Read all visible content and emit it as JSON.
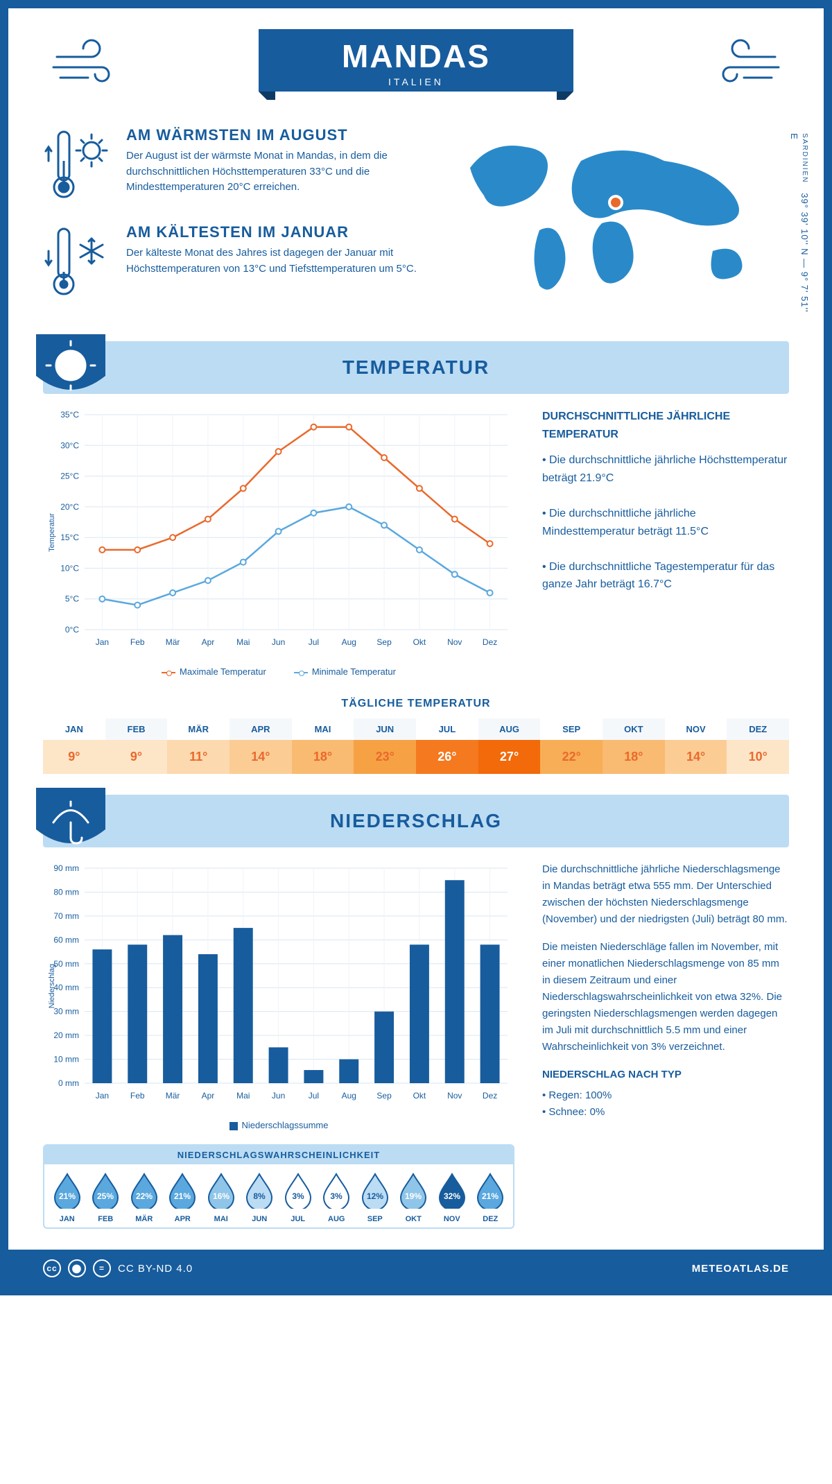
{
  "colors": {
    "primary": "#175c9d",
    "light": "#bcdcf4",
    "accent": "#e9692c",
    "line_max": "#e9692c",
    "line_min": "#5aa8de"
  },
  "header": {
    "title": "MANDAS",
    "subtitle": "ITALIEN"
  },
  "coords": {
    "region": "SARDINIEN",
    "text": "39° 39' 10'' N — 9° 7' 51'' E"
  },
  "facts": {
    "warm": {
      "title": "AM WÄRMSTEN IM AUGUST",
      "text": "Der August ist der wärmste Monat in Mandas, in dem die durchschnittlichen Höchsttemperaturen 33°C und die Mindesttemperaturen 20°C erreichen."
    },
    "cold": {
      "title": "AM KÄLTESTEN IM JANUAR",
      "text": "Der kälteste Monat des Jahres ist dagegen der Januar mit Höchsttemperaturen von 13°C und Tiefsttemperaturen um 5°C."
    }
  },
  "sections": {
    "temp": "TEMPERATUR",
    "precip": "NIEDERSCHLAG"
  },
  "months": [
    "Jan",
    "Feb",
    "Mär",
    "Apr",
    "Mai",
    "Jun",
    "Jul",
    "Aug",
    "Sep",
    "Okt",
    "Nov",
    "Dez"
  ],
  "months_upper": [
    "JAN",
    "FEB",
    "MÄR",
    "APR",
    "MAI",
    "JUN",
    "JUL",
    "AUG",
    "SEP",
    "OKT",
    "NOV",
    "DEZ"
  ],
  "temp_chart": {
    "ylabel": "Temperatur",
    "ymin": 0,
    "ymax": 35,
    "ystep": 5,
    "max": [
      13,
      13,
      15,
      18,
      23,
      29,
      33,
      33,
      28,
      23,
      18,
      14
    ],
    "min": [
      5,
      4,
      6,
      8,
      11,
      16,
      19,
      20,
      17,
      13,
      9,
      6
    ],
    "legend_max": "Maximale Temperatur",
    "legend_min": "Minimale Temperatur"
  },
  "temp_info": {
    "title": "DURCHSCHNITTLICHE JÄHRLICHE TEMPERATUR",
    "b1": "• Die durchschnittliche jährliche Höchsttemperatur beträgt 21.9°C",
    "b2": "• Die durchschnittliche jährliche Mindesttemperatur beträgt 11.5°C",
    "b3": "• Die durchschnittliche Tagestemperatur für das ganze Jahr beträgt 16.7°C"
  },
  "daily": {
    "title": "TÄGLICHE TEMPERATUR",
    "temps": [
      "9°",
      "9°",
      "11°",
      "14°",
      "18°",
      "23°",
      "26°",
      "27°",
      "22°",
      "18°",
      "14°",
      "10°"
    ],
    "bg": [
      "#fde5c8",
      "#fde5c8",
      "#fcd9ae",
      "#fbcd95",
      "#f9ba71",
      "#f6a244",
      "#f4791f",
      "#f26a0a",
      "#f7ae57",
      "#f9ba71",
      "#fbcd95",
      "#fde5c8"
    ],
    "fg": [
      "#e9692c",
      "#e9692c",
      "#e9692c",
      "#e9692c",
      "#e9692c",
      "#e9692c",
      "#ffffff",
      "#ffffff",
      "#e9692c",
      "#e9692c",
      "#e9692c",
      "#e9692c"
    ]
  },
  "precip_chart": {
    "ylabel": "Niederschlag",
    "ymax": 90,
    "ystep": 10,
    "values": [
      56,
      58,
      62,
      54,
      65,
      15,
      5.5,
      10,
      30,
      58,
      85,
      58
    ],
    "legend": "Niederschlagssumme"
  },
  "precip_text": {
    "p1": "Die durchschnittliche jährliche Niederschlagsmenge in Mandas beträgt etwa 555 mm. Der Unterschied zwischen der höchsten Niederschlagsmenge (November) und der niedrigsten (Juli) beträgt 80 mm.",
    "p2": "Die meisten Niederschläge fallen im November, mit einer monatlichen Niederschlagsmenge von 85 mm in diesem Zeitraum und einer Niederschlagswahrscheinlichkeit von etwa 32%. Die geringsten Niederschlagsmengen werden dagegen im Juli mit durchschnittlich 5.5 mm und einer Wahrscheinlichkeit von 3% verzeichnet.",
    "type_title": "NIEDERSCHLAG NACH TYP",
    "type1": "• Regen: 100%",
    "type2": "• Schnee: 0%"
  },
  "prob": {
    "title": "NIEDERSCHLAGSWAHRSCHEINLICHKEIT",
    "values": [
      "21%",
      "25%",
      "22%",
      "21%",
      "16%",
      "8%",
      "3%",
      "3%",
      "12%",
      "19%",
      "32%",
      "21%"
    ],
    "fill": [
      "#5aa8de",
      "#5aa8de",
      "#5aa8de",
      "#5aa8de",
      "#8fc5e8",
      "#bcdcf4",
      "#ffffff",
      "#ffffff",
      "#bcdcf4",
      "#8fc5e8",
      "#175c9d",
      "#5aa8de"
    ],
    "text": [
      "#ffffff",
      "#ffffff",
      "#ffffff",
      "#ffffff",
      "#ffffff",
      "#175c9d",
      "#175c9d",
      "#175c9d",
      "#175c9d",
      "#ffffff",
      "#ffffff",
      "#ffffff"
    ]
  },
  "footer": {
    "license": "CC BY-ND 4.0",
    "site": "METEOATLAS.DE"
  }
}
